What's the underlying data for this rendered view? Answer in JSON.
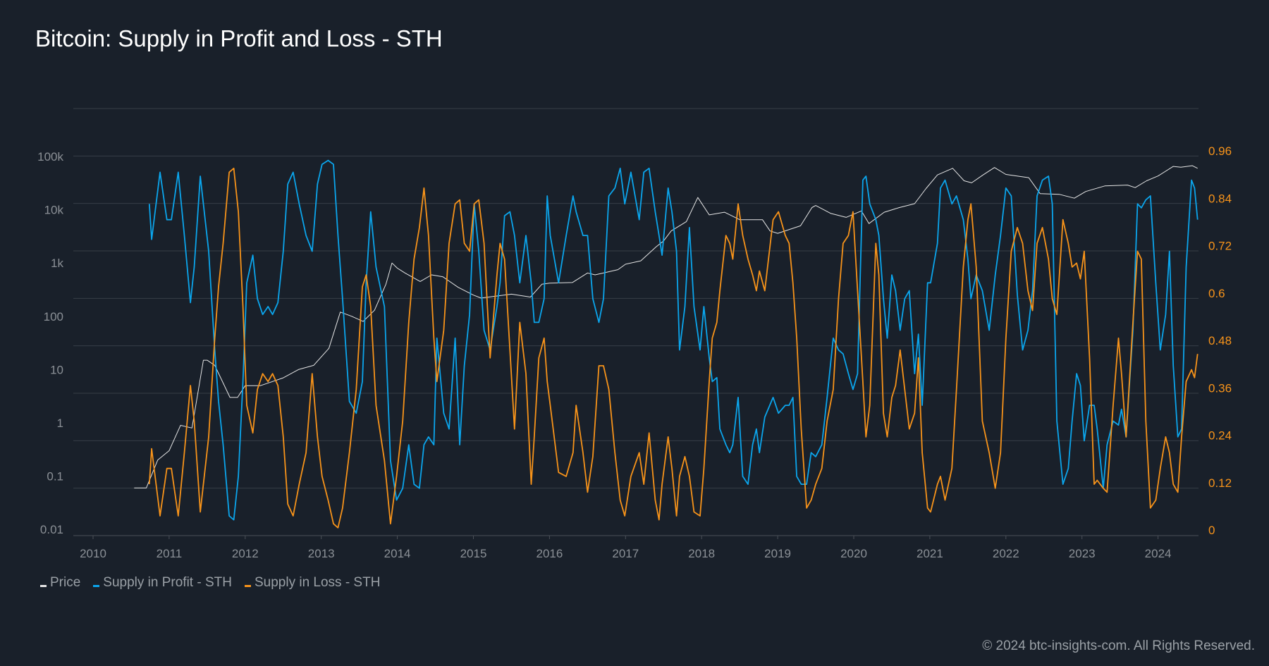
{
  "chart_data": {
    "type": "line",
    "title": "Bitcoin: Supply in Profit and Loss - STH",
    "xlabel": "",
    "x_ticks": [
      "2010",
      "2011",
      "2012",
      "2013",
      "2014",
      "2015",
      "2016",
      "2017",
      "2018",
      "2019",
      "2020",
      "2021",
      "2022",
      "2023",
      "2024"
    ],
    "xlim": [
      2010,
      2024.52
    ],
    "left_axis": {
      "scale": "log",
      "ticks": [
        "100k",
        "10k",
        "1k",
        "100",
        "10",
        "1",
        "0.1",
        "0.01"
      ],
      "tick_values": [
        100000,
        10000,
        1000,
        100,
        10,
        1,
        0.1,
        0.01
      ],
      "ylim": [
        0.01,
        100000
      ]
    },
    "right_axis": {
      "scale": "linear",
      "ticks": [
        "0.96",
        "0.84",
        "0.72",
        "0.6",
        "0.48",
        "0.36",
        "0.24",
        "0.12",
        "0"
      ],
      "tick_values": [
        0.96,
        0.84,
        0.72,
        0.6,
        0.48,
        0.36,
        0.24,
        0.12,
        0
      ],
      "ylim": [
        0,
        0.96
      ]
    },
    "grid": true,
    "legend_position": "bottom-left",
    "series": [
      {
        "name": "Price",
        "axis": "left",
        "color": "#e6e6e6",
        "x": [
          2010.54,
          2010.7,
          2010.85,
          2011.0,
          2011.15,
          2011.3,
          2011.45,
          2011.5,
          2011.6,
          2011.8,
          2011.9,
          2012.0,
          2012.2,
          2012.5,
          2012.7,
          2012.9,
          2013.1,
          2013.25,
          2013.4,
          2013.55,
          2013.7,
          2013.85,
          2013.93,
          2014.0,
          2014.1,
          2014.3,
          2014.45,
          2014.6,
          2014.8,
          2015.0,
          2015.1,
          2015.3,
          2015.5,
          2015.75,
          2015.9,
          2016.0,
          2016.3,
          2016.5,
          2016.6,
          2016.9,
          2017.0,
          2017.2,
          2017.4,
          2017.5,
          2017.6,
          2017.8,
          2017.95,
          2018.1,
          2018.3,
          2018.5,
          2018.8,
          2018.9,
          2019.0,
          2019.3,
          2019.45,
          2019.5,
          2019.7,
          2019.9,
          2020.1,
          2020.2,
          2020.4,
          2020.6,
          2020.8,
          2020.95,
          2021.1,
          2021.3,
          2021.45,
          2021.55,
          2021.7,
          2021.85,
          2022.0,
          2022.3,
          2022.45,
          2022.7,
          2022.9,
          2023.05,
          2023.3,
          2023.6,
          2023.7,
          2023.85,
          2024.0,
          2024.2,
          2024.3,
          2024.45,
          2024.52
        ],
        "values": [
          0.06,
          0.06,
          0.2,
          0.3,
          0.9,
          0.8,
          15,
          15,
          12,
          3,
          3,
          5,
          5,
          7,
          10,
          12,
          25,
          120,
          100,
          80,
          130,
          400,
          1000,
          800,
          650,
          450,
          600,
          550,
          350,
          250,
          220,
          240,
          260,
          230,
          400,
          420,
          430,
          650,
          600,
          750,
          950,
          1100,
          2000,
          2600,
          4000,
          6000,
          17000,
          8000,
          9000,
          6500,
          6500,
          4000,
          3600,
          5000,
          11000,
          12000,
          8500,
          7200,
          9500,
          5500,
          9000,
          11000,
          13000,
          25000,
          45000,
          60000,
          35000,
          32000,
          45000,
          62000,
          46000,
          40000,
          20000,
          19500,
          16500,
          22000,
          28000,
          29000,
          26000,
          35000,
          43000,
          65000,
          63000,
          67000,
          60000
        ]
      },
      {
        "name": "Supply in Profit - STH",
        "axis": "right",
        "color": "#0ba5ec",
        "x": "same_as_loss",
        "values": [
          0.84,
          0.75,
          0.92,
          0.8,
          0.8,
          0.92,
          0.76,
          0.59,
          0.68,
          0.91,
          0.72,
          0.47,
          0.34,
          0.23,
          0.05,
          0.04,
          0.15,
          0.39,
          0.64,
          0.71,
          0.6,
          0.56,
          0.58,
          0.56,
          0.59,
          0.72,
          0.89,
          0.92,
          0.84,
          0.76,
          0.72,
          0.89,
          0.94,
          0.95,
          0.94,
          0.76,
          0.6,
          0.34,
          0.31,
          0.39,
          0.64,
          0.82,
          0.68,
          0.58,
          0.19,
          0.09,
          0.12,
          0.23,
          0.13,
          0.12,
          0.23,
          0.25,
          0.23,
          0.5,
          0.31,
          0.27,
          0.5,
          0.23,
          0.43,
          0.56,
          0.84,
          0.72,
          0.52,
          0.47,
          0.58,
          0.64,
          0.81,
          0.82,
          0.76,
          0.64,
          0.76,
          0.64,
          0.54,
          0.54,
          0.6,
          0.86,
          0.76,
          0.64,
          0.76,
          0.86,
          0.82,
          0.76,
          0.76,
          0.6,
          0.54,
          0.6,
          0.86,
          0.88,
          0.93,
          0.84,
          0.92,
          0.8,
          0.92,
          0.93,
          0.82,
          0.76,
          0.71,
          0.88,
          0.82,
          0.72,
          0.47,
          0.58,
          0.78,
          0.58,
          0.47,
          0.58,
          0.45,
          0.39,
          0.4,
          0.27,
          0.23,
          0.21,
          0.23,
          0.35,
          0.15,
          0.13,
          0.23,
          0.27,
          0.21,
          0.3,
          0.35,
          0.31,
          0.33,
          0.33,
          0.35,
          0.15,
          0.13,
          0.13,
          0.21,
          0.2,
          0.23,
          0.35,
          0.5,
          0.47,
          0.46,
          0.41,
          0.37,
          0.41,
          0.9,
          0.91,
          0.84,
          0.8,
          0.76,
          0.6,
          0.5,
          0.66,
          0.62,
          0.52,
          0.6,
          0.62,
          0.41,
          0.51,
          0.33,
          0.64,
          0.64,
          0.74,
          0.88,
          0.9,
          0.84,
          0.86,
          0.8,
          0.7,
          0.6,
          0.66,
          0.62,
          0.52,
          0.66,
          0.76,
          0.88,
          0.86,
          0.61,
          0.47,
          0.52,
          0.62,
          0.86,
          0.9,
          0.91,
          0.84,
          0.29,
          0.13,
          0.17,
          0.29,
          0.41,
          0.38,
          0.24,
          0.33,
          0.33,
          0.27,
          0.12,
          0.23,
          0.29,
          0.28,
          0.32,
          0.25,
          0.52,
          0.84,
          0.83,
          0.85,
          0.86,
          0.64,
          0.47,
          0.56,
          0.72,
          0.43,
          0.25,
          0.27,
          0.68,
          0.9,
          0.88,
          0.8,
          0.72,
          0.76,
          0.84,
          0.86,
          0.72,
          0.58,
          0.55,
          0.57,
          0.51
        ]
      },
      {
        "name": "Supply in Loss - STH",
        "axis": "right",
        "color": "#f7931a",
        "x": [
          2010.74,
          2010.77,
          2010.88,
          2010.97,
          2011.03,
          2011.12,
          2011.2,
          2011.28,
          2011.33,
          2011.41,
          2011.52,
          2011.6,
          2011.65,
          2011.71,
          2011.79,
          2011.85,
          2011.91,
          2011.97,
          2012.02,
          2012.1,
          2012.16,
          2012.23,
          2012.3,
          2012.36,
          2012.43,
          2012.5,
          2012.56,
          2012.63,
          2012.71,
          2012.8,
          2012.88,
          2012.95,
          2013.01,
          2013.09,
          2013.16,
          2013.22,
          2013.28,
          2013.37,
          2013.46,
          2013.54,
          2013.59,
          2013.65,
          2013.72,
          2013.83,
          2013.91,
          2013.99,
          2014.07,
          2014.15,
          2014.22,
          2014.29,
          2014.35,
          2014.41,
          2014.48,
          2014.52,
          2014.61,
          2014.68,
          2014.76,
          2014.82,
          2014.88,
          2014.95,
          2015.01,
          2015.07,
          2015.14,
          2015.22,
          2015.31,
          2015.35,
          2015.41,
          2015.48,
          2015.54,
          2015.61,
          2015.69,
          2015.76,
          2015.8,
          2015.86,
          2015.93,
          2015.97,
          2016.01,
          2016.12,
          2016.22,
          2016.31,
          2016.35,
          2016.44,
          2016.5,
          2016.57,
          2016.65,
          2016.71,
          2016.78,
          2016.86,
          2016.93,
          2016.99,
          2017.07,
          2017.18,
          2017.24,
          2017.31,
          2017.39,
          2017.44,
          2017.48,
          2017.56,
          2017.61,
          2017.67,
          2017.71,
          2017.78,
          2017.84,
          2017.9,
          2017.98,
          2018.03,
          2018.1,
          2018.14,
          2018.2,
          2018.24,
          2018.32,
          2018.37,
          2018.41,
          2018.48,
          2018.54,
          2018.61,
          2018.67,
          2018.72,
          2018.76,
          2018.83,
          2018.94,
          2019.01,
          2019.1,
          2019.15,
          2019.2,
          2019.25,
          2019.31,
          2019.38,
          2019.44,
          2019.5,
          2019.58,
          2019.65,
          2019.73,
          2019.8,
          2019.86,
          2019.93,
          2019.99,
          2020.05,
          2020.12,
          2020.16,
          2020.21,
          2020.29,
          2020.33,
          2020.39,
          2020.44,
          2020.5,
          2020.55,
          2020.61,
          2020.67,
          2020.73,
          2020.8,
          2020.85,
          2020.9,
          2020.97,
          2021.01,
          2021.1,
          2021.14,
          2021.2,
          2021.29,
          2021.35,
          2021.44,
          2021.5,
          2021.54,
          2021.61,
          2021.69,
          2021.78,
          2021.86,
          2021.93,
          2022.0,
          2022.07,
          2022.15,
          2022.22,
          2022.29,
          2022.35,
          2022.41,
          2022.48,
          2022.56,
          2022.61,
          2022.67,
          2022.75,
          2022.82,
          2022.87,
          2022.93,
          2022.98,
          2023.03,
          2023.1,
          2023.16,
          2023.2,
          2023.28,
          2023.33,
          2023.41,
          2023.48,
          2023.52,
          2023.58,
          2023.67,
          2023.73,
          2023.78,
          2023.84,
          2023.9,
          2023.97,
          2024.03,
          2024.1,
          2024.15,
          2024.2,
          2024.26,
          2024.31,
          2024.37,
          2024.44,
          2024.48,
          2024.52
        ],
        "values": [
          0.13,
          0.22,
          0.05,
          0.17,
          0.17,
          0.05,
          0.21,
          0.38,
          0.29,
          0.06,
          0.25,
          0.5,
          0.63,
          0.74,
          0.92,
          0.93,
          0.82,
          0.58,
          0.33,
          0.26,
          0.37,
          0.41,
          0.39,
          0.41,
          0.38,
          0.25,
          0.08,
          0.05,
          0.13,
          0.21,
          0.41,
          0.25,
          0.15,
          0.09,
          0.03,
          0.02,
          0.07,
          0.21,
          0.37,
          0.63,
          0.66,
          0.58,
          0.33,
          0.19,
          0.03,
          0.15,
          0.29,
          0.54,
          0.7,
          0.78,
          0.88,
          0.76,
          0.5,
          0.39,
          0.52,
          0.74,
          0.84,
          0.85,
          0.74,
          0.72,
          0.84,
          0.85,
          0.74,
          0.45,
          0.66,
          0.74,
          0.7,
          0.47,
          0.27,
          0.54,
          0.41,
          0.13,
          0.25,
          0.45,
          0.5,
          0.39,
          0.33,
          0.16,
          0.15,
          0.21,
          0.33,
          0.21,
          0.11,
          0.2,
          0.43,
          0.43,
          0.37,
          0.21,
          0.09,
          0.05,
          0.15,
          0.21,
          0.13,
          0.26,
          0.09,
          0.04,
          0.13,
          0.25,
          0.17,
          0.05,
          0.15,
          0.2,
          0.15,
          0.06,
          0.05,
          0.17,
          0.39,
          0.5,
          0.54,
          0.62,
          0.76,
          0.74,
          0.7,
          0.84,
          0.76,
          0.7,
          0.66,
          0.62,
          0.67,
          0.62,
          0.8,
          0.82,
          0.76,
          0.74,
          0.64,
          0.5,
          0.27,
          0.07,
          0.09,
          0.13,
          0.17,
          0.29,
          0.37,
          0.6,
          0.74,
          0.76,
          0.82,
          0.62,
          0.39,
          0.25,
          0.33,
          0.74,
          0.66,
          0.31,
          0.25,
          0.35,
          0.38,
          0.47,
          0.37,
          0.27,
          0.31,
          0.45,
          0.21,
          0.07,
          0.06,
          0.13,
          0.15,
          0.09,
          0.17,
          0.37,
          0.68,
          0.8,
          0.84,
          0.68,
          0.29,
          0.21,
          0.12,
          0.21,
          0.5,
          0.72,
          0.78,
          0.74,
          0.62,
          0.57,
          0.74,
          0.78,
          0.7,
          0.6,
          0.56,
          0.8,
          0.74,
          0.68,
          0.69,
          0.65,
          0.72,
          0.45,
          0.13,
          0.14,
          0.12,
          0.11,
          0.33,
          0.5,
          0.41,
          0.25,
          0.54,
          0.72,
          0.7,
          0.29,
          0.07,
          0.09,
          0.17,
          0.25,
          0.21,
          0.13,
          0.11,
          0.25,
          0.39,
          0.42,
          0.4,
          0.46
        ]
      }
    ]
  },
  "legend": [
    {
      "label": "Price",
      "color": "#e6e6e6"
    },
    {
      "label": "Supply in Profit - STH",
      "color": "#0ba5ec"
    },
    {
      "label": "Supply in Loss - STH",
      "color": "#f7931a"
    }
  ],
  "copyright": "© 2024 btc-insights-com. All Rights Reserved.",
  "colors": {
    "background": "#19202a",
    "grid": "#373e47",
    "tick": "#8b9096",
    "right_tick": "#f7931a"
  }
}
